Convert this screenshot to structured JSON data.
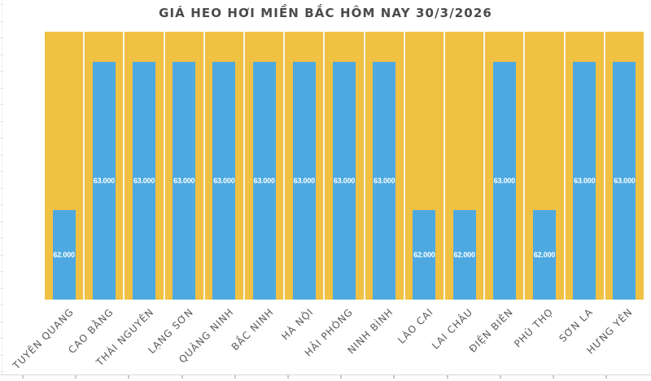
{
  "chart_data": {
    "type": "bar",
    "title": "GIÁ HEO HƠI MIỀN BẮC HÔM NAY 30/3/2026",
    "categories": [
      "TUYÊN QUANG",
      "CAO BẰNG",
      "THÁI NGUYÊN",
      "LẠNG SƠN",
      "QUẢNG NINH",
      "BẮC NINH",
      "HÀ NỘI",
      "HẢI PHÒNG",
      "NINH BÌNH",
      "LÀO CAI",
      "LAI CHÂU",
      "ĐIỆN BIÊN",
      "PHÚ THỌ",
      "SƠN LA",
      "HƯNG YÊN"
    ],
    "values": [
      62000,
      63000,
      63000,
      63000,
      63000,
      63000,
      63000,
      63000,
      63000,
      62000,
      62000,
      63000,
      62000,
      63000,
      63000
    ],
    "value_labels": [
      "62.000",
      "63.000",
      "63.000",
      "63.000",
      "63.000",
      "63.000",
      "63.000",
      "63.000",
      "63.000",
      "62.000",
      "62.000",
      "63.000",
      "62.000",
      "63.000",
      "63.000"
    ],
    "xlabel": "",
    "ylabel": "",
    "ylim_estimated": [
      61400,
      63200
    ],
    "grid": false,
    "legend": false,
    "bar_label_position": "inside-center",
    "x_tick_rotation_deg": 45
  },
  "colors": {
    "column_background": "#F0C143",
    "bar_fill": "#4EA9E1",
    "bar_value_text": "#FFFFFF",
    "title_text": "#4A4A4A",
    "axis_label_text": "#595959",
    "sheet_gridline": "#D9D9D9"
  }
}
